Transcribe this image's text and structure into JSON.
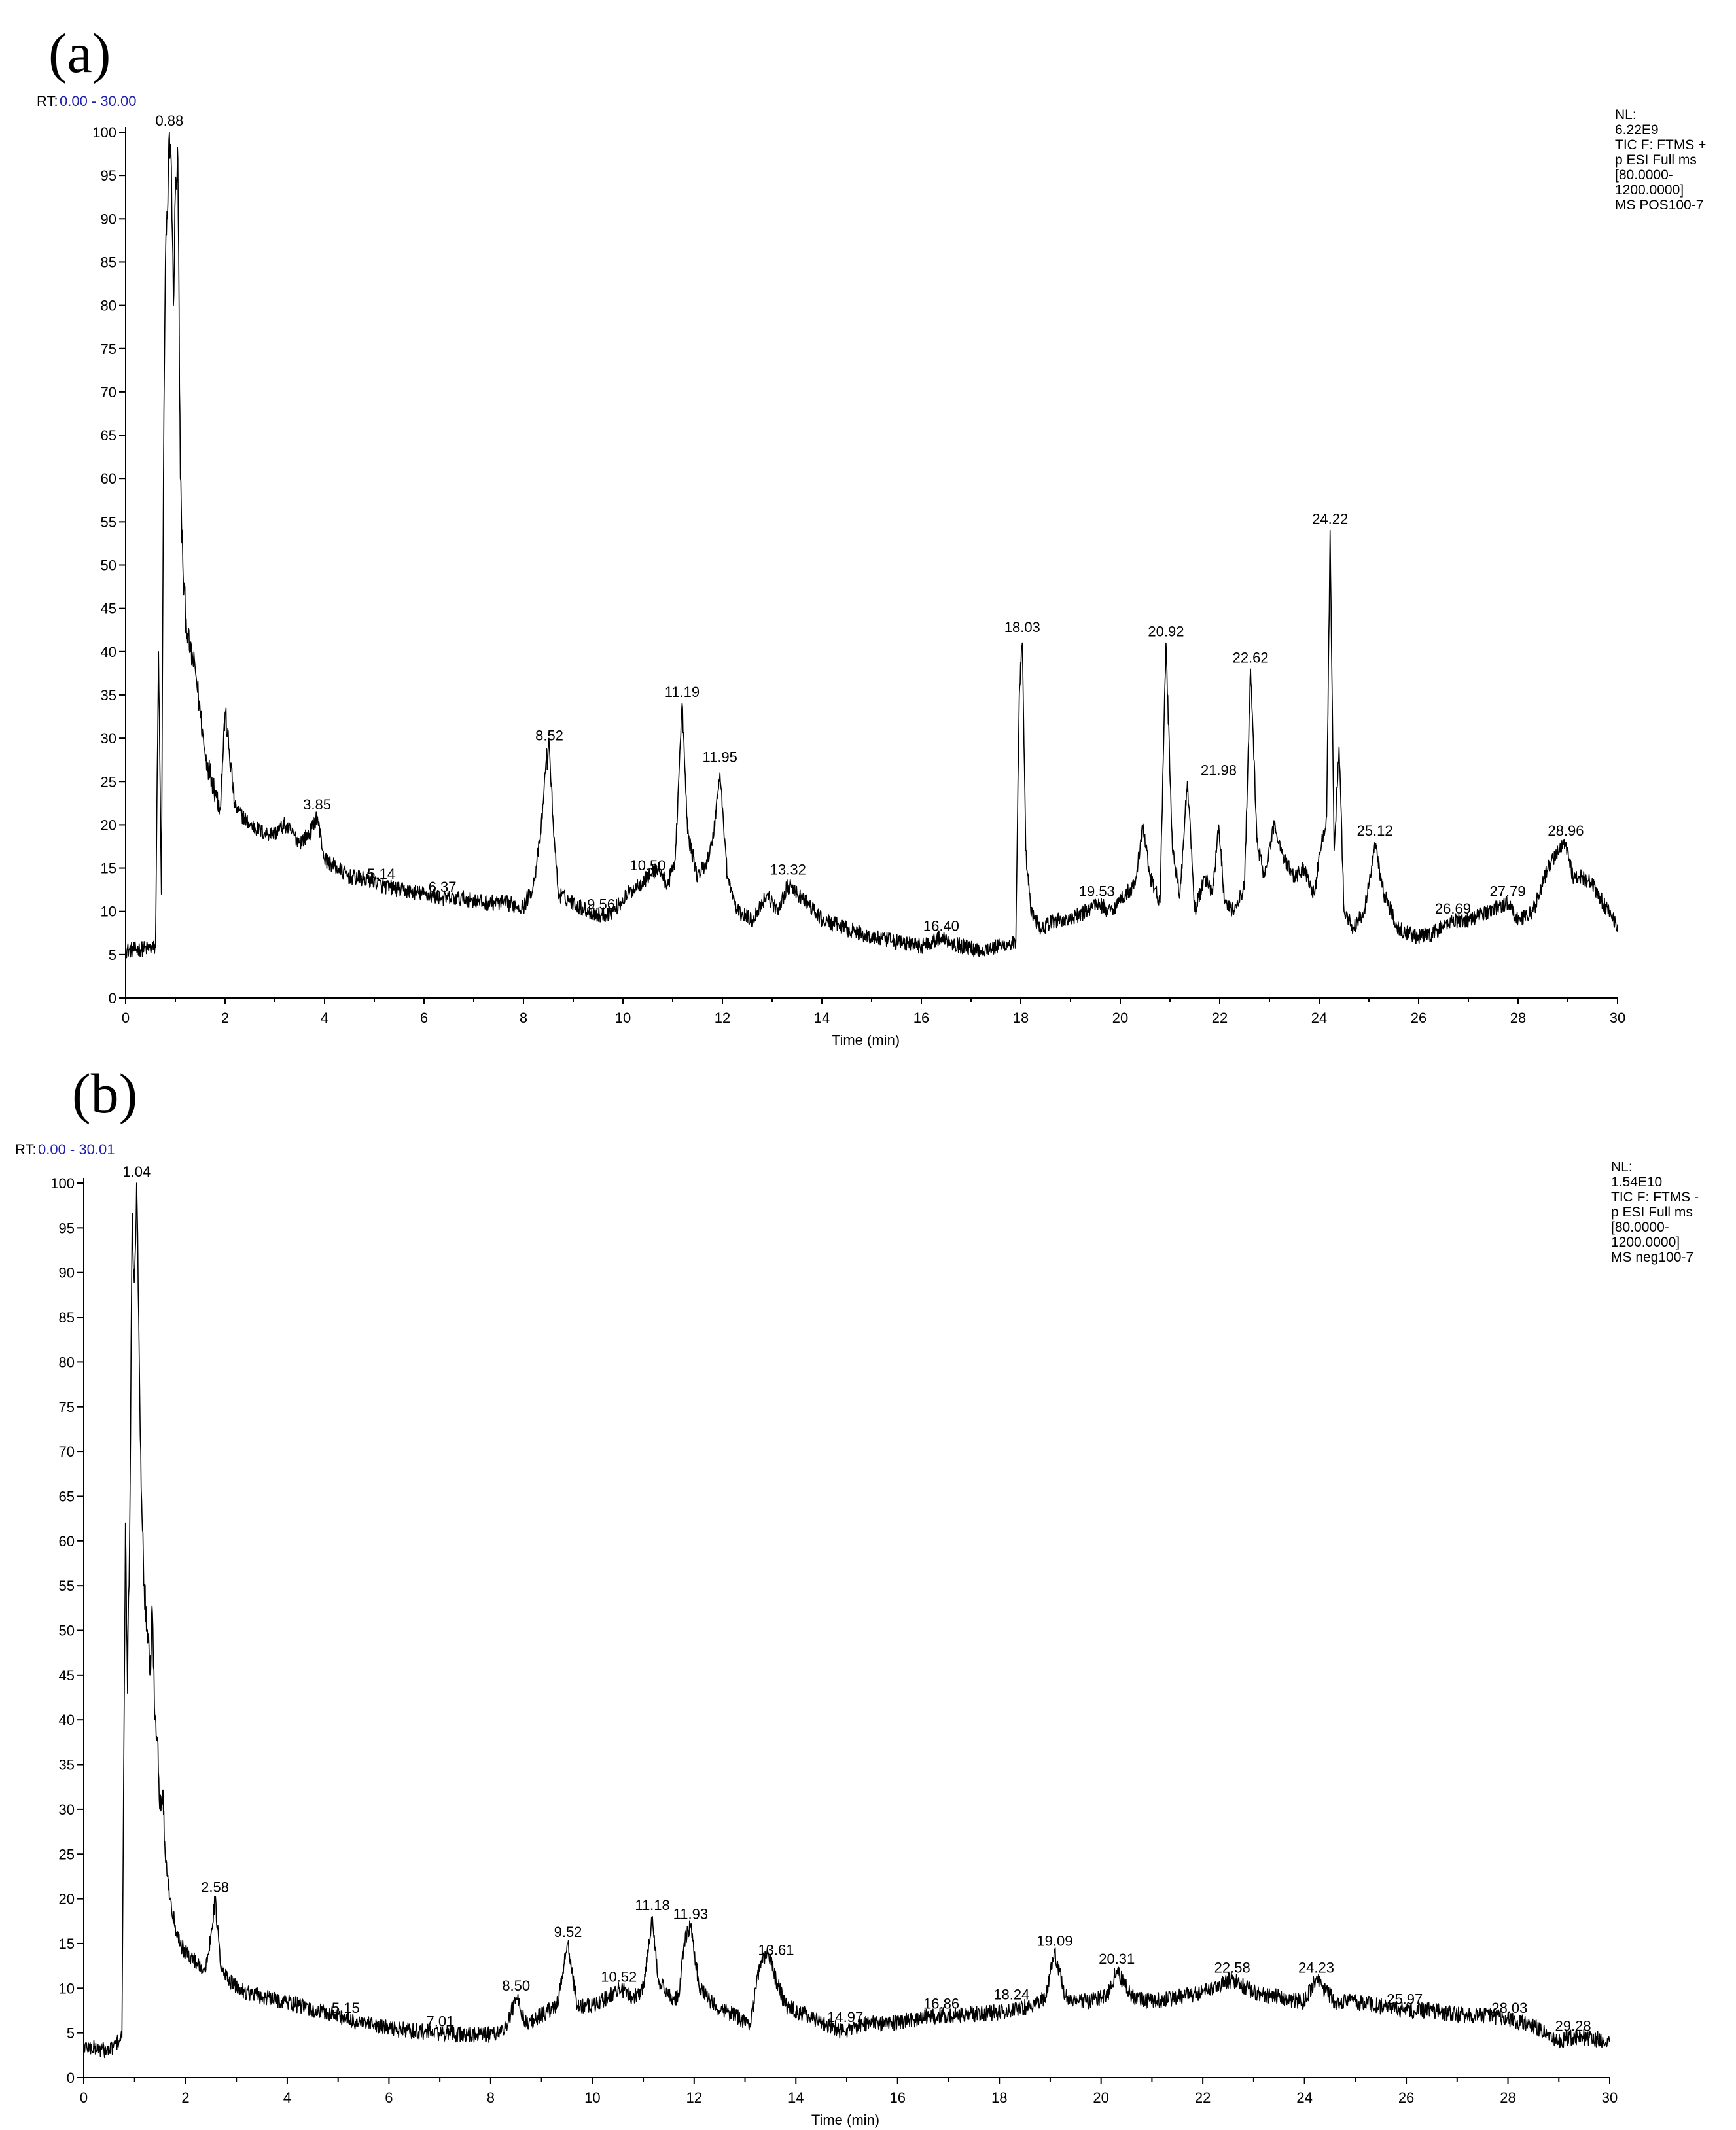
{
  "chart_data": [
    {
      "type": "line",
      "panel_label": "(a)",
      "rt_prefix": "RT:",
      "rt_range": "0.00 - 30.00",
      "xlabel": "Time (min)",
      "ylabel": "",
      "xlim": [
        0,
        30
      ],
      "ylim": [
        0,
        100
      ],
      "x_ticks": [
        0,
        2,
        4,
        6,
        8,
        10,
        12,
        14,
        16,
        18,
        20,
        22,
        24,
        26,
        28,
        30
      ],
      "y_ticks": [
        0,
        5,
        10,
        15,
        20,
        25,
        30,
        35,
        40,
        45,
        50,
        55,
        60,
        65,
        70,
        75,
        80,
        85,
        90,
        95,
        100
      ],
      "info_lines": [
        "NL:",
        "6.22E9",
        "TIC F: FTMS +",
        "p ESI Full ms",
        "[80.0000-",
        "1200.0000]",
        "MS POS100-7"
      ],
      "series": [
        {
          "x": [
            0,
            0.6,
            0.66,
            0.72,
            0.76,
            0.8,
            0.84,
            0.88,
            0.92,
            0.96,
            1.0,
            1.05,
            1.1,
            1.15,
            1.2,
            1.3,
            1.4,
            1.5,
            1.6,
            1.7,
            1.8,
            1.9,
            2.0,
            2.2,
            2.5,
            2.8,
            3.0,
            3.2,
            3.5,
            3.7,
            3.85,
            4.0,
            4.5,
            5.0,
            5.14,
            5.5,
            6.0,
            6.37,
            6.8,
            7.2,
            7.6,
            8.0,
            8.2,
            8.35,
            8.45,
            8.52,
            8.6,
            8.7,
            9.0,
            9.3,
            9.56,
            9.8,
            10.1,
            10.3,
            10.5,
            10.7,
            10.9,
            11.05,
            11.19,
            11.3,
            11.5,
            11.7,
            11.8,
            11.95,
            12.1,
            12.3,
            12.6,
            12.9,
            13.1,
            13.32,
            13.5,
            13.7,
            14.0,
            14.5,
            15.0,
            15.5,
            16.0,
            16.4,
            16.8,
            17.2,
            17.6,
            17.9,
            17.97,
            18.03,
            18.1,
            18.2,
            18.4,
            18.7,
            19.0,
            19.3,
            19.53,
            19.8,
            20.1,
            20.3,
            20.45,
            20.6,
            20.8,
            20.92,
            21.05,
            21.2,
            21.35,
            21.5,
            21.7,
            21.85,
            21.98,
            22.1,
            22.3,
            22.5,
            22.62,
            22.75,
            22.9,
            23.1,
            23.3,
            23.5,
            23.7,
            23.9,
            24.05,
            24.15,
            24.22,
            24.3,
            24.4,
            24.5,
            24.7,
            24.9,
            25.0,
            25.12,
            25.3,
            25.6,
            26.0,
            26.3,
            26.69,
            27.0,
            27.4,
            27.79,
            28.0,
            28.3,
            28.6,
            28.8,
            28.96,
            29.1,
            29.3,
            29.5,
            29.7,
            30.0
          ],
          "values": [
            5.5,
            5.8,
            40,
            12,
            60,
            85,
            90,
            100,
            96,
            80,
            93,
            97,
            60,
            50,
            44,
            40,
            38,
            33,
            28,
            26,
            24,
            22,
            33,
            22,
            20,
            19,
            19,
            20,
            18,
            19,
            21,
            16,
            14,
            13.5,
            13,
            12.5,
            12,
            11.5,
            11.5,
            11,
            11,
            10.5,
            13,
            19,
            27,
            29,
            20,
            12,
            11,
            10,
            9.5,
            10,
            12,
            13,
            14,
            15,
            13,
            16,
            34,
            19,
            14,
            16,
            18,
            26,
            14,
            10,
            9,
            12,
            10,
            13,
            12,
            11,
            9,
            8,
            7,
            6.5,
            6,
            7,
            6,
            5.5,
            6,
            6.5,
            35,
            41,
            17,
            10,
            8,
            9,
            9,
            10,
            11,
            10,
            12,
            13,
            20,
            14,
            11,
            41,
            17,
            12,
            25,
            10,
            14,
            12,
            20,
            11,
            10,
            13,
            38,
            18,
            14,
            20,
            16,
            14,
            15,
            12,
            18,
            21,
            54,
            17,
            29,
            10,
            8,
            10,
            13,
            18,
            12,
            8,
            7,
            7.5,
            9,
            9,
            10,
            11,
            9,
            10,
            15,
            17,
            18,
            14,
            14,
            13,
            11,
            8.5
          ]
        }
      ],
      "peak_labels": [
        {
          "x": 0.88,
          "y": 100,
          "text": "0.88"
        },
        {
          "x": 3.85,
          "y": 21,
          "text": "3.85"
        },
        {
          "x": 5.14,
          "y": 13,
          "text": "5.14"
        },
        {
          "x": 6.37,
          "y": 11.5,
          "text": "6.37"
        },
        {
          "x": 8.52,
          "y": 29,
          "text": "8.52"
        },
        {
          "x": 9.56,
          "y": 9.5,
          "text": "9.56"
        },
        {
          "x": 10.5,
          "y": 14,
          "text": "10.50"
        },
        {
          "x": 11.19,
          "y": 34,
          "text": "11.19"
        },
        {
          "x": 11.95,
          "y": 26.5,
          "text": "11.95"
        },
        {
          "x": 13.32,
          "y": 13.5,
          "text": "13.32"
        },
        {
          "x": 16.4,
          "y": 7,
          "text": "16.40"
        },
        {
          "x": 18.03,
          "y": 41.5,
          "text": "18.03"
        },
        {
          "x": 19.53,
          "y": 11,
          "text": "19.53"
        },
        {
          "x": 20.92,
          "y": 41,
          "text": "20.92"
        },
        {
          "x": 21.98,
          "y": 25,
          "text": "21.98"
        },
        {
          "x": 22.62,
          "y": 38,
          "text": "22.62"
        },
        {
          "x": 24.22,
          "y": 54,
          "text": "24.22"
        },
        {
          "x": 25.12,
          "y": 18,
          "text": "25.12"
        },
        {
          "x": 26.69,
          "y": 9,
          "text": "26.69"
        },
        {
          "x": 27.79,
          "y": 11,
          "text": "27.79"
        },
        {
          "x": 28.96,
          "y": 18,
          "text": "28.96"
        }
      ]
    },
    {
      "type": "line",
      "panel_label": "(b)",
      "rt_prefix": "RT:",
      "rt_range": "0.00 - 30.01",
      "xlabel": "Time (min)",
      "ylabel": "",
      "xlim": [
        0,
        30
      ],
      "ylim": [
        0,
        100
      ],
      "x_ticks": [
        0,
        2,
        4,
        6,
        8,
        10,
        12,
        14,
        16,
        18,
        20,
        22,
        24,
        26,
        28,
        30
      ],
      "y_ticks": [
        0,
        5,
        10,
        15,
        20,
        25,
        30,
        35,
        40,
        45,
        50,
        55,
        60,
        65,
        70,
        75,
        80,
        85,
        90,
        95,
        100
      ],
      "info_lines": [
        "NL:",
        "1.54E10",
        "TIC F: FTMS -",
        "p ESI Full ms",
        "[80.0000-",
        "1200.0000]",
        "MS neg100-7"
      ],
      "series": [
        {
          "x": [
            0,
            0.5,
            0.75,
            0.82,
            0.86,
            0.9,
            0.95,
            1.0,
            1.04,
            1.08,
            1.12,
            1.18,
            1.25,
            1.3,
            1.35,
            1.4,
            1.45,
            1.5,
            1.55,
            1.6,
            1.7,
            1.8,
            1.9,
            2.0,
            2.2,
            2.4,
            2.5,
            2.58,
            2.7,
            3.0,
            3.5,
            4.0,
            4.5,
            5.0,
            5.15,
            5.5,
            6.0,
            6.5,
            7.01,
            7.5,
            8.0,
            8.3,
            8.5,
            8.7,
            9.0,
            9.3,
            9.52,
            9.7,
            10.0,
            10.3,
            10.52,
            10.8,
            11.0,
            11.18,
            11.3,
            11.5,
            11.7,
            11.8,
            11.93,
            12.1,
            12.4,
            12.8,
            13.1,
            13.3,
            13.45,
            13.61,
            13.8,
            14.2,
            14.6,
            14.97,
            15.3,
            15.8,
            16.3,
            16.86,
            17.3,
            17.8,
            18.24,
            18.6,
            18.9,
            19.09,
            19.3,
            19.7,
            20.1,
            20.31,
            20.6,
            21.0,
            21.5,
            22.0,
            22.58,
            23.0,
            23.5,
            24.0,
            24.23,
            24.6,
            25.0,
            25.5,
            25.97,
            26.5,
            27.0,
            27.5,
            28.03,
            28.4,
            28.8,
            29.0,
            29.28,
            29.6,
            30.0
          ],
          "values": [
            3.5,
            3,
            4.5,
            62,
            43,
            60,
            95,
            90,
            100,
            85,
            70,
            55,
            50,
            45,
            52,
            40,
            38,
            30,
            32,
            25,
            20,
            17,
            15,
            14,
            13,
            12,
            16,
            20,
            12,
            10,
            9,
            8.5,
            7.5,
            7,
            6.5,
            6,
            5.5,
            5.2,
            5,
            4.8,
            4.8,
            5.5,
            9,
            6,
            7,
            8,
            15,
            8,
            8,
            9,
            10,
            9,
            10,
            18,
            11,
            9,
            9,
            15,
            17,
            10,
            8,
            7,
            6,
            13,
            14,
            11,
            8,
            7,
            6,
            5,
            6,
            6,
            6.5,
            7,
            7,
            7.2,
            7.5,
            8,
            9,
            14,
            9,
            8.5,
            9,
            12,
            9,
            8.5,
            9,
            9.5,
            11,
            9.5,
            9,
            8.5,
            11,
            8.5,
            8.5,
            8,
            7.5,
            7.5,
            7,
            7,
            6.5,
            6,
            5,
            4,
            4.5,
            4.5,
            4
          ]
        }
      ],
      "peak_labels": [
        {
          "x": 1.04,
          "y": 100,
          "text": "1.04"
        },
        {
          "x": 2.58,
          "y": 20,
          "text": "2.58"
        },
        {
          "x": 5.15,
          "y": 6.5,
          "text": "5.15"
        },
        {
          "x": 7.01,
          "y": 5,
          "text": "7.01"
        },
        {
          "x": 8.5,
          "y": 9,
          "text": "8.50"
        },
        {
          "x": 9.52,
          "y": 15,
          "text": "9.52"
        },
        {
          "x": 10.52,
          "y": 10,
          "text": "10.52"
        },
        {
          "x": 11.18,
          "y": 18,
          "text": "11.18"
        },
        {
          "x": 11.93,
          "y": 17,
          "text": "11.93"
        },
        {
          "x": 13.61,
          "y": 13,
          "text": "13.61"
        },
        {
          "x": 14.97,
          "y": 5.5,
          "text": "14.97"
        },
        {
          "x": 16.86,
          "y": 7,
          "text": "16.86"
        },
        {
          "x": 18.24,
          "y": 8,
          "text": "18.24"
        },
        {
          "x": 19.09,
          "y": 14,
          "text": "19.09"
        },
        {
          "x": 20.31,
          "y": 12,
          "text": "20.31"
        },
        {
          "x": 22.58,
          "y": 11,
          "text": "22.58"
        },
        {
          "x": 24.23,
          "y": 11,
          "text": "24.23"
        },
        {
          "x": 25.97,
          "y": 7.5,
          "text": "25.97"
        },
        {
          "x": 28.03,
          "y": 6.5,
          "text": "28.03"
        },
        {
          "x": 29.28,
          "y": 4.5,
          "text": "29.28"
        }
      ]
    }
  ]
}
